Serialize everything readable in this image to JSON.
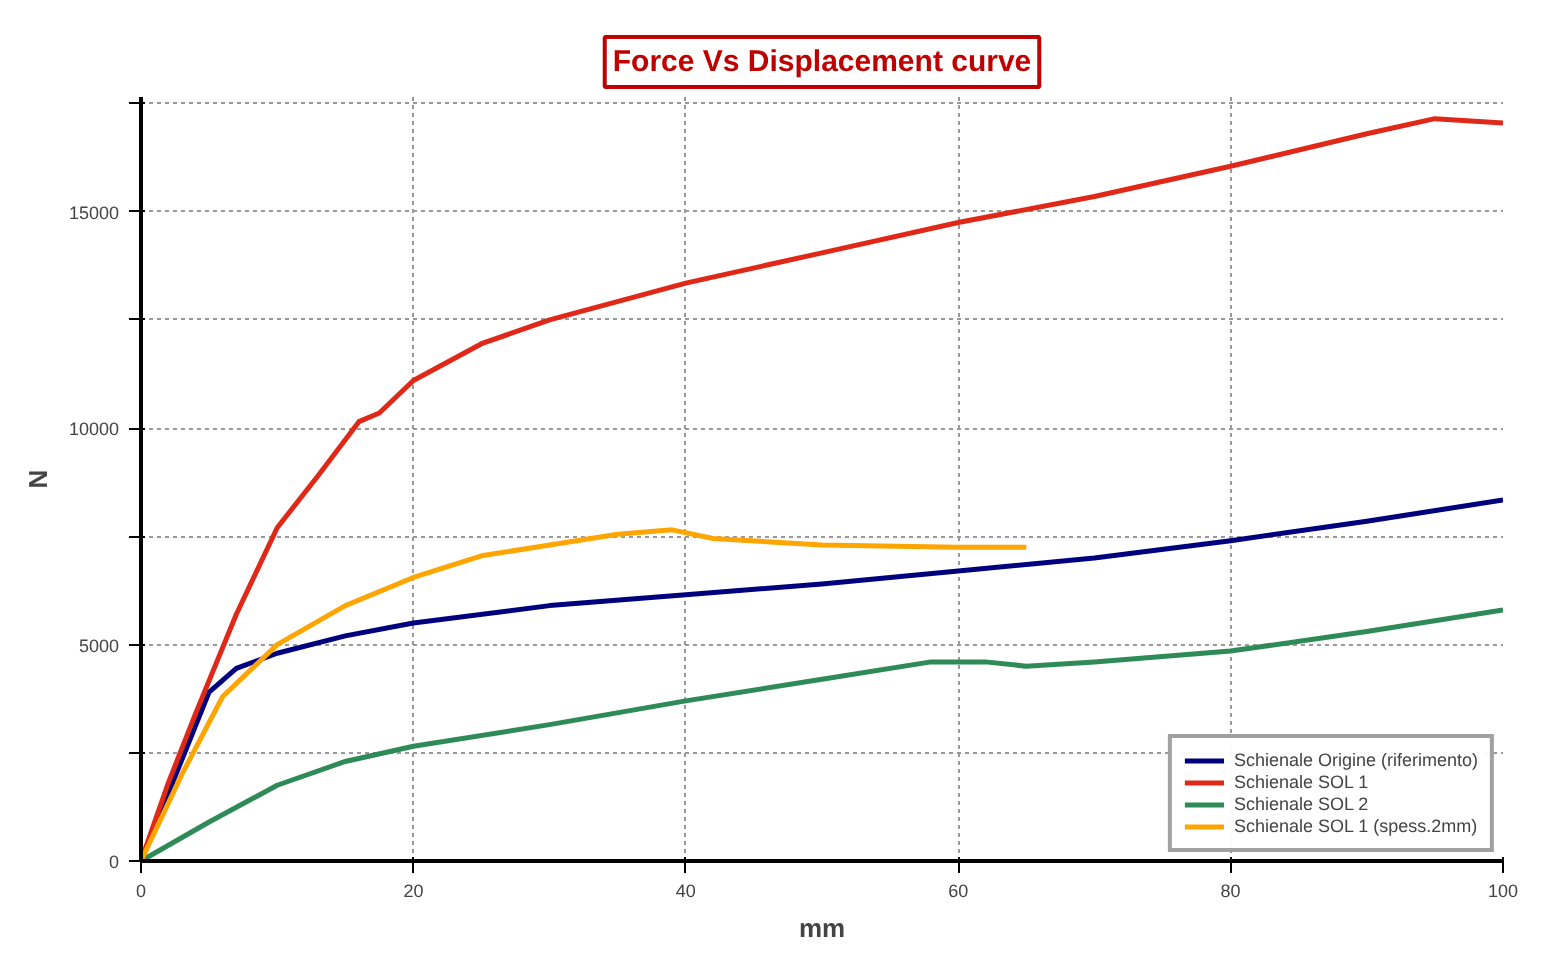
{
  "chart_data": {
    "type": "line",
    "title": "Force Vs Displacement curve",
    "xlabel": "mm",
    "ylabel": "N",
    "xlim": [
      0,
      100
    ],
    "xticks": [
      0,
      20,
      40,
      60,
      80,
      100
    ],
    "ylim": [
      0,
      17650
    ],
    "yticks": [
      0,
      {
        "value": 2500,
        "label": null
      },
      5000,
      {
        "value": 7500,
        "label": null
      },
      10000,
      {
        "value": 12500,
        "label": null
      },
      15000,
      {
        "value": 17500,
        "label": null
      }
    ],
    "grid": true,
    "legend": "bottom right",
    "line_style": "solid",
    "marker": "none",
    "series": [
      {
        "name": "Schienale Origine (riferimento)",
        "color": "#00007f",
        "x": [
          0,
          5,
          7,
          10,
          15,
          20,
          30,
          40,
          50,
          60,
          70,
          80,
          90,
          100
        ],
        "values": [
          0,
          3900,
          4450,
          4800,
          5200,
          5500,
          5900,
          6150,
          6400,
          6700,
          7000,
          7400,
          7850,
          8340
        ]
      },
      {
        "name": "Schienale SOL 1",
        "color": "#e02818",
        "x": [
          0,
          2,
          4,
          7,
          10,
          13,
          16,
          17.5,
          20,
          25,
          30,
          40,
          50,
          60,
          70,
          80,
          90,
          95,
          100
        ],
        "values": [
          0,
          1800,
          3400,
          5700,
          7700,
          8900,
          10150,
          10350,
          11100,
          11950,
          12500,
          13350,
          14050,
          14750,
          15350,
          16050,
          16800,
          17150,
          17050
        ]
      },
      {
        "name": "Schienale SOL 2",
        "color": "#2e8b57",
        "x": [
          0,
          5,
          10,
          15,
          20,
          30,
          40,
          50,
          58,
          62,
          65,
          70,
          80,
          90,
          100
        ],
        "values": [
          0,
          900,
          1750,
          2300,
          2650,
          3150,
          3700,
          4200,
          4600,
          4600,
          4500,
          4600,
          4850,
          5300,
          5800
        ]
      },
      {
        "name": "Schienale SOL 1 (spess.2mm)",
        "color": "#ffa500",
        "x": [
          0,
          3,
          6,
          10,
          15,
          20,
          25,
          30,
          35,
          39,
          42,
          50,
          60,
          65
        ],
        "values": [
          0,
          2000,
          3800,
          5000,
          5900,
          6550,
          7050,
          7300,
          7550,
          7650,
          7450,
          7300,
          7250,
          7250
        ]
      }
    ]
  }
}
